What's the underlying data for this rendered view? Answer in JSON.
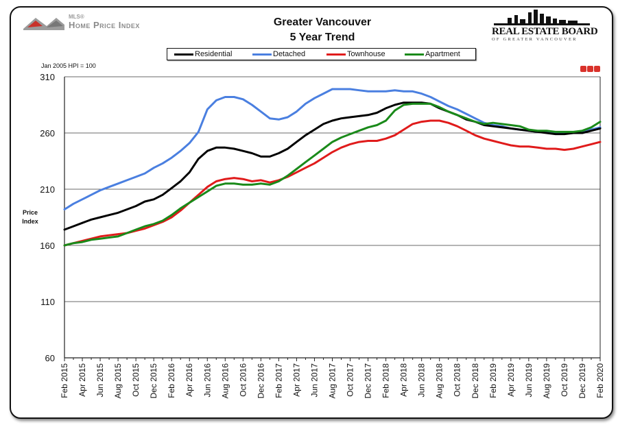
{
  "header": {
    "hpi_mls": "MLS®",
    "hpi_name": "Home Price Index",
    "title_line1": "Greater Vancouver",
    "title_line2": "5 Year Trend",
    "board_name": "REAL ESTATE BOARD",
    "board_sub": "OF GREATER VANCOUVER"
  },
  "note": "Jan 2005 HPI = 100",
  "axis": {
    "ylabel_line1": "Price",
    "ylabel_line2": "Index"
  },
  "colors": {
    "Residential": "#000000",
    "Detached": "#4a7fe0",
    "Townhouse": "#e01b1b",
    "Apartment": "#1a8a1a",
    "accent_logo": "#d9322b"
  },
  "chart_data": {
    "type": "line",
    "title": "Greater Vancouver 5 Year Trend",
    "xlabel": "",
    "ylabel": "Price Index",
    "ylim": [
      60,
      310
    ],
    "yticks": [
      60,
      110,
      160,
      210,
      260,
      310
    ],
    "grid": "horizontal",
    "legend_position": "top",
    "x": [
      "Feb 2015",
      "Mar 2015",
      "Apr 2015",
      "May 2015",
      "Jun 2015",
      "Jul 2015",
      "Aug 2015",
      "Sep 2015",
      "Oct 2015",
      "Nov 2015",
      "Dec 2015",
      "Jan 2016",
      "Feb 2016",
      "Mar 2016",
      "Apr 2016",
      "May 2016",
      "Jun 2016",
      "Jul 2016",
      "Aug 2016",
      "Sep 2016",
      "Oct 2016",
      "Nov 2016",
      "Dec 2016",
      "Jan 2017",
      "Feb 2017",
      "Mar 2017",
      "Apr 2017",
      "May 2017",
      "Jun 2017",
      "Jul 2017",
      "Aug 2017",
      "Sep 2017",
      "Oct 2017",
      "Nov 2017",
      "Dec 2017",
      "Jan 2018",
      "Feb 2018",
      "Mar 2018",
      "Apr 2018",
      "May 2018",
      "Jun 2018",
      "Jul 2018",
      "Aug 2018",
      "Sep 2018",
      "Oct 2018",
      "Nov 2018",
      "Dec 2018",
      "Jan 2019",
      "Feb 2019",
      "Mar 2019",
      "Apr 2019",
      "May 2019",
      "Jun 2019",
      "Jul 2019",
      "Aug 2019",
      "Sep 2019",
      "Oct 2019",
      "Nov 2019",
      "Dec 2019",
      "Jan 2020",
      "Feb 2020"
    ],
    "tick_labels": [
      "Feb 2015",
      "Apr 2015",
      "Jun 2015",
      "Aug 2015",
      "Oct 2015",
      "Dec 2015",
      "Feb 2016",
      "Apr 2016",
      "Jun 2016",
      "Aug 2016",
      "Oct 2016",
      "Dec 2016",
      "Feb 2017",
      "Apr 2017",
      "Jun 2017",
      "Aug 2017",
      "Oct 2017",
      "Dec 2017",
      "Feb 2018",
      "Apr 2018",
      "Jun 2018",
      "Aug 2018",
      "Oct 2018",
      "Dec 2018",
      "Feb 2019",
      "Apr 2019",
      "Jun 2019",
      "Aug 2019",
      "Oct 2019",
      "Dec 2019",
      "Feb 2020"
    ],
    "series": [
      {
        "name": "Residential",
        "values": [
          174,
          177,
          180,
          183,
          185,
          187,
          189,
          192,
          195,
          199,
          201,
          205,
          211,
          217,
          225,
          237,
          244,
          247,
          247,
          246,
          244,
          242,
          239,
          239,
          242,
          246,
          252,
          258,
          263,
          268,
          271,
          273,
          274,
          275,
          276,
          278,
          282,
          285,
          287,
          287,
          287,
          286,
          282,
          279,
          276,
          272,
          270,
          267,
          266,
          265,
          264,
          263,
          262,
          261,
          260,
          259,
          259,
          260,
          260,
          262,
          264
        ]
      },
      {
        "name": "Detached",
        "values": [
          192,
          197,
          201,
          205,
          209,
          212,
          215,
          218,
          221,
          224,
          229,
          233,
          238,
          244,
          251,
          261,
          281,
          289,
          292,
          292,
          290,
          285,
          279,
          273,
          272,
          274,
          279,
          286,
          291,
          295,
          299,
          299,
          299,
          298,
          297,
          297,
          297,
          298,
          297,
          297,
          295,
          292,
          288,
          284,
          281,
          277,
          273,
          269,
          267,
          266,
          264,
          263,
          262,
          261,
          261,
          260,
          260,
          260,
          261,
          263,
          265
        ]
      },
      {
        "name": "Townhouse",
        "values": [
          160,
          162,
          164,
          166,
          168,
          169,
          170,
          171,
          173,
          175,
          178,
          181,
          185,
          191,
          198,
          205,
          212,
          217,
          219,
          220,
          219,
          217,
          218,
          216,
          218,
          221,
          225,
          229,
          233,
          238,
          243,
          247,
          250,
          252,
          253,
          253,
          255,
          258,
          263,
          268,
          270,
          271,
          271,
          269,
          266,
          262,
          258,
          255,
          253,
          251,
          249,
          248,
          248,
          247,
          246,
          246,
          245,
          246,
          248,
          250,
          252
        ]
      },
      {
        "name": "Apartment",
        "values": [
          160,
          162,
          163,
          165,
          166,
          167,
          168,
          171,
          174,
          177,
          179,
          182,
          187,
          193,
          198,
          203,
          208,
          213,
          215,
          215,
          214,
          214,
          215,
          214,
          217,
          222,
          228,
          234,
          240,
          246,
          252,
          256,
          259,
          262,
          265,
          267,
          271,
          280,
          285,
          286,
          286,
          286,
          283,
          279,
          276,
          273,
          270,
          268,
          269,
          268,
          267,
          266,
          263,
          262,
          262,
          261,
          261,
          261,
          262,
          265,
          270
        ]
      }
    ]
  }
}
